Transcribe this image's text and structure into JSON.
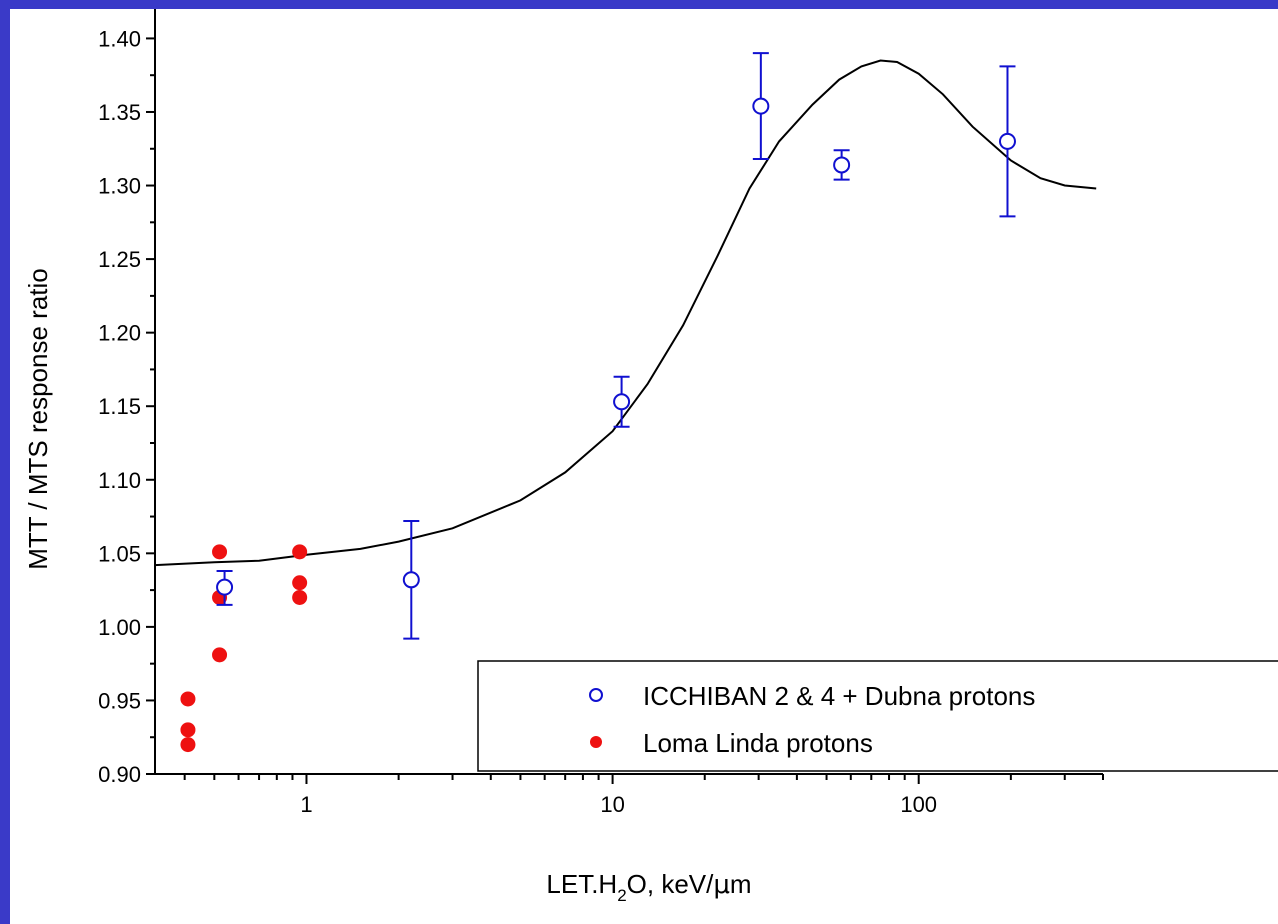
{
  "colors": {
    "background_border": "#3a3ac8",
    "series_icchiban": "#1010d0",
    "series_loma": "#ee1111",
    "fit_curve": "#000000"
  },
  "chart_data": {
    "type": "scatter",
    "title": "",
    "xlabel": "LET.H2O, keV/μm",
    "xlabel_parts": {
      "pre": "LET.H",
      "sub": "2",
      "post": "O, keV/",
      "mu": "μ",
      "tail": "m"
    },
    "ylabel": "MTT / MTS response ratio",
    "xscale": "log",
    "xlim": [
      0.32,
      400
    ],
    "ylim": [
      0.9,
      1.42
    ],
    "x_ticks": [
      1,
      10,
      100
    ],
    "x_tick_labels": [
      "1",
      "10",
      "100"
    ],
    "y_ticks": [
      0.9,
      0.95,
      1.0,
      1.05,
      1.1,
      1.15,
      1.2,
      1.25,
      1.3,
      1.35,
      1.4
    ],
    "y_tick_labels": [
      "0.90",
      "0.95",
      "1.00",
      "1.05",
      "1.10",
      "1.15",
      "1.20",
      "1.25",
      "1.30",
      "1.35",
      "1.40"
    ],
    "grid": false,
    "legend_position": "bottom-right",
    "series": [
      {
        "name": "ICCHIBAN 2 & 4 + Dubna protons",
        "marker": "open-circle",
        "points": [
          {
            "x": 0.54,
            "y": 1.027,
            "ylo": 1.015,
            "yhi": 1.038
          },
          {
            "x": 2.2,
            "y": 1.032,
            "ylo": 0.992,
            "yhi": 1.072
          },
          {
            "x": 10.7,
            "y": 1.153,
            "ylo": 1.136,
            "yhi": 1.17
          },
          {
            "x": 30.5,
            "y": 1.354,
            "ylo": 1.318,
            "yhi": 1.39
          },
          {
            "x": 56,
            "y": 1.314,
            "ylo": 1.304,
            "yhi": 1.324
          },
          {
            "x": 195,
            "y": 1.33,
            "ylo": 1.279,
            "yhi": 1.381
          }
        ]
      },
      {
        "name": "Loma Linda protons",
        "marker": "filled-circle",
        "points": [
          {
            "x": 0.41,
            "y": 0.951
          },
          {
            "x": 0.41,
            "y": 0.93
          },
          {
            "x": 0.41,
            "y": 0.92
          },
          {
            "x": 0.52,
            "y": 1.051
          },
          {
            "x": 0.52,
            "y": 1.02
          },
          {
            "x": 0.52,
            "y": 0.981
          },
          {
            "x": 0.95,
            "y": 1.051
          },
          {
            "x": 0.95,
            "y": 1.03
          },
          {
            "x": 0.95,
            "y": 1.02
          }
        ]
      },
      {
        "marker": "line",
        "points": [
          {
            "x": 0.32,
            "y": 1.042
          },
          {
            "x": 0.5,
            "y": 1.044
          },
          {
            "x": 0.7,
            "y": 1.045
          },
          {
            "x": 1.0,
            "y": 1.049
          },
          {
            "x": 1.5,
            "y": 1.053
          },
          {
            "x": 2.0,
            "y": 1.058
          },
          {
            "x": 3.0,
            "y": 1.067
          },
          {
            "x": 5.0,
            "y": 1.086
          },
          {
            "x": 7.0,
            "y": 1.105
          },
          {
            "x": 10.0,
            "y": 1.133
          },
          {
            "x": 13.0,
            "y": 1.165
          },
          {
            "x": 17.0,
            "y": 1.205
          },
          {
            "x": 22.0,
            "y": 1.252
          },
          {
            "x": 28.0,
            "y": 1.298
          },
          {
            "x": 35.0,
            "y": 1.33
          },
          {
            "x": 45.0,
            "y": 1.355
          },
          {
            "x": 55.0,
            "y": 1.372
          },
          {
            "x": 65.0,
            "y": 1.381
          },
          {
            "x": 75.0,
            "y": 1.385
          },
          {
            "x": 85.0,
            "y": 1.384
          },
          {
            "x": 100.0,
            "y": 1.376
          },
          {
            "x": 120.0,
            "y": 1.362
          },
          {
            "x": 150.0,
            "y": 1.34
          },
          {
            "x": 200.0,
            "y": 1.317
          },
          {
            "x": 250.0,
            "y": 1.305
          },
          {
            "x": 300.0,
            "y": 1.3
          },
          {
            "x": 380.0,
            "y": 1.298
          }
        ]
      }
    ]
  }
}
